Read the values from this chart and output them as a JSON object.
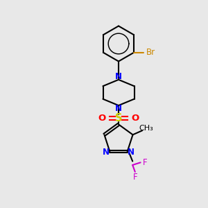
{
  "bg_color": "#e8e8e8",
  "bond_color": "black",
  "N_color": "blue",
  "O_color": "red",
  "S_color": "#cccc00",
  "F_color": "#cc00cc",
  "Br_color": "#cc8800",
  "line_width": 1.5,
  "font_size": 8.5,
  "fig_size": [
    3.0,
    3.0
  ],
  "dpi": 100,
  "xlim": [
    0,
    10
  ],
  "ylim": [
    0,
    10
  ]
}
